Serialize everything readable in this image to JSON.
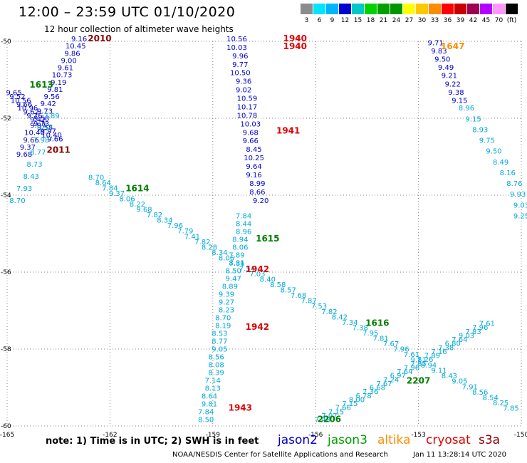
{
  "header": {
    "title": "12:00 – 23:59 UTC 01/10/2020",
    "subtitle": "12 hour collection of altimeter wave heights"
  },
  "color_scale": {
    "labels": [
      "3",
      "6",
      "9",
      "12",
      "15",
      "18",
      "21",
      "24",
      "27",
      "30",
      "33",
      "36",
      "39",
      "42",
      "45",
      "70",
      "(ft)"
    ],
    "colors": [
      "#8c8c8c",
      "#00e5ff",
      "#00b4ff",
      "#0000d2",
      "#00c8c8",
      "#00d200",
      "#00a000",
      "#009600",
      "#ffff00",
      "#ffc800",
      "#ff8c00",
      "#ff0000",
      "#c80000",
      "#a00050",
      "#b400ff",
      "#ff96ff",
      "#000000"
    ]
  },
  "map": {
    "lon_ticks": [
      "-165",
      "-162",
      "-159",
      "-156",
      "-153",
      "-150"
    ],
    "lat_ticks": [
      "-50",
      "-52",
      "-54",
      "-56",
      "-58",
      "-60"
    ],
    "lon_range": [
      -165,
      -150
    ],
    "lat_range": [
      -60,
      -50
    ],
    "grid": "dotted"
  },
  "tracks": [
    {
      "name": "t1",
      "sat": "jason2",
      "color": "#0000c8",
      "lon": [
        -162.9,
        -163.0,
        -163.1,
        -163.2,
        -163.3,
        -163.4,
        -163.5,
        -163.6,
        -163.7,
        -163.8,
        -163.9,
        -164.0,
        -164.1,
        -164.2,
        -164.3,
        -164.4,
        -164.5
      ],
      "values": [
        "9.16",
        "10.45",
        "9.86",
        "9.00",
        "9.61",
        "10.73",
        "9.19",
        "9.81",
        "9.56",
        "9.42",
        "9.73",
        "9.58",
        "9.97",
        "10.40",
        "9.66",
        "9.37",
        "9.68"
      ]
    },
    {
      "name": "t2",
      "sat": "jason2",
      "color": "#0000c8",
      "lon": [
        -164.8,
        -164.7,
        -164.6,
        -164.5,
        -164.4,
        -164.3,
        -164.2,
        -164.1,
        -164.0,
        -163.9,
        -163.8,
        -163.7,
        -163.6
      ],
      "values": [
        "9.65",
        "9.52",
        "10.56",
        "9.66",
        "10.96",
        "9.62",
        "9.76",
        "9.42",
        "9.73",
        "9.58",
        "9.97",
        "10.40",
        "9.66"
      ]
    },
    {
      "name": "t3",
      "sat": "jason3",
      "color": "#00a8d8",
      "lon": [
        -163.7,
        -163.9,
        -164.0,
        -164.1,
        -164.2,
        -164.3,
        -164.5,
        -164.7
      ],
      "values": [
        "7.89",
        "8.57",
        "7.98",
        "8.77",
        "8.73",
        "8.43",
        "7.93",
        "8.70"
      ]
    },
    {
      "name": "t4",
      "sat": "jason3",
      "color": "#00a8d8",
      "lon": [
        -162.4,
        -162.2,
        -162.0,
        -161.8,
        -161.5,
        -161.2,
        -161.0,
        -160.7,
        -160.4,
        -160.1,
        -159.8,
        -159.6,
        -159.3,
        -159.1,
        -158.8,
        -158.6,
        -158.3,
        -158.0,
        -157.7,
        -157.4,
        -157.1,
        -156.8,
        -156.5,
        -156.2,
        -155.9,
        -155.6,
        -155.3,
        -155.0,
        -154.7,
        -154.4,
        -154.1,
        -153.8,
        -153.5,
        -153.2,
        -153.0,
        -152.7,
        -152.4,
        -152.1,
        -151.8,
        -151.5,
        -151.2,
        -150.9,
        -150.6,
        -150.3
      ],
      "values": [
        "8.70",
        "8.64",
        "7.84",
        "9.37",
        "8.06",
        "8.22",
        "9.68",
        "7.82",
        "8.34",
        "7.96",
        "7.79",
        "7.41",
        "7.82",
        "8.28",
        "8.34",
        "8.06",
        "7.86",
        "7.54",
        "7.03",
        "8.40",
        "8.58",
        "8.57",
        "7.68",
        "7.87",
        "7.53",
        "7.82",
        "8.42",
        "7.34",
        "7.38",
        "7.95",
        "7.81",
        "7.67",
        "7.96",
        "7.61",
        "9.11",
        "8.94",
        "9.11",
        "8.43",
        "9.05",
        "7.91",
        "8.56",
        "8.54",
        "8.25",
        "7.85"
      ]
    },
    {
      "name": "t5",
      "sat": "jason2",
      "color": "#0000c8",
      "lon": [
        -158.3,
        -158.3,
        -158.2,
        -158.2,
        -158.2,
        -158.1,
        -158.1,
        -158.0,
        -158.0,
        -158.0,
        -157.9,
        -157.9,
        -157.9,
        -157.8,
        -157.8,
        -157.8,
        -157.8,
        -157.7,
        -157.7,
        -157.6
      ],
      "values": [
        "10.56",
        "10.03",
        "9.96",
        "9.77",
        "10.50",
        "9.36",
        "9.02",
        "10.59",
        "10.17",
        "10.78",
        "10.03",
        "9.68",
        "9.66",
        "8.45",
        "10.25",
        "9.64",
        "9.16",
        "8.99",
        "8.66",
        "9.20"
      ]
    },
    {
      "name": "t6",
      "sat": "jason3",
      "color": "#00a8d8",
      "lon": [
        -158.1,
        -158.1,
        -158.1,
        -158.2,
        -158.2,
        -158.3,
        -158.3,
        -158.4,
        -158.4,
        -158.5,
        -158.6,
        -158.6,
        -158.6,
        -158.7,
        -158.7,
        -158.8,
        -158.8,
        -158.8,
        -158.9,
        -158.9,
        -158.9,
        -159.0,
        -159.0,
        -159.1,
        -159.1,
        -159.2,
        -159.2
      ],
      "values": [
        "7.84",
        "8.44",
        "8.96",
        "8.94",
        "8.06",
        "7.89",
        "8.31",
        "8.50",
        "9.47",
        "8.89",
        "9.39",
        "9.27",
        "8.23",
        "8.70",
        "8.19",
        "8.53",
        "8.77",
        "9.05",
        "8.56",
        "8.08",
        "8.39",
        "7.14",
        "8.13",
        "8.64",
        "9.81",
        "7.84",
        "8.50"
      ]
    },
    {
      "name": "t7",
      "sat": "jason3",
      "color": "#00a8d8",
      "lon": [
        -151.6,
        -151.4,
        -151.2,
        -151.0,
        -150.8,
        -150.6,
        -150.4,
        -150.2,
        -150.1,
        -150.0,
        -150.0
      ],
      "values": [
        "8.96",
        "9.15",
        "8.93",
        "9.75",
        "9.50",
        "8.49",
        "8.16",
        "8.76",
        "9.93",
        "9.03",
        "9.25"
      ]
    },
    {
      "name": "t8",
      "sat": "jason2",
      "color": "#0000c8",
      "lon": [
        -152.5,
        -152.4,
        -152.3,
        -152.2,
        -152.1,
        -152.0,
        -151.9,
        -151.8
      ],
      "values": [
        "9.71",
        "9.83",
        "9.50",
        "9.49",
        "9.21",
        "9.22",
        "9.38",
        "9.15"
      ]
    },
    {
      "name": "t9",
      "sat": "jason3",
      "color": "#00a8d8",
      "lon": [
        -155.8,
        -155.6,
        -155.4,
        -155.2,
        -155.0,
        -154.8,
        -154.6,
        -154.4,
        -154.2,
        -154.0,
        -153.8,
        -153.6,
        -153.4,
        -153.2,
        -153.0,
        -152.8,
        -152.6,
        -152.4,
        -152.2,
        -152.0,
        -151.8,
        -151.6,
        -151.4,
        -151.2,
        -151.0
      ],
      "values": [
        "7.48",
        "7.07",
        "7.15",
        "7.66",
        "7.15",
        "8.00",
        "6.78",
        "7.36",
        "6.68",
        "7.67",
        "7.24",
        "6.97",
        "7.64",
        "7.96",
        "7.85",
        "8.26",
        "7.89",
        "7.16",
        "7.38",
        "6.80",
        "7.64",
        "9.03",
        "7.83",
        "7.96",
        "7.61"
      ]
    }
  ],
  "track_labels": [
    {
      "text": "2010",
      "color": "#8b0000"
    },
    {
      "text": "1613",
      "color": "#008000"
    },
    {
      "text": "2011",
      "color": "#8b0000"
    },
    {
      "text": "1614",
      "color": "#008000"
    },
    {
      "text": "1940",
      "color": "#e00000"
    },
    {
      "text": "1940",
      "color": "#e00000"
    },
    {
      "text": "1941",
      "color": "#e00000"
    },
    {
      "text": "1615",
      "color": "#008000"
    },
    {
      "text": "1942",
      "color": "#e00000"
    },
    {
      "text": "1942",
      "color": "#e00000"
    },
    {
      "text": "1943",
      "color": "#e00000"
    },
    {
      "text": "1647",
      "color": "#ff8c00"
    },
    {
      "text": "1616",
      "color": "#008000"
    },
    {
      "text": "2207",
      "color": "#008000"
    },
    {
      "text": "2206",
      "color": "#008000"
    }
  ],
  "footer": {
    "note": "note: 1) Time is in UTC; 2) SWH is in feet",
    "satellites": [
      {
        "name": "jason2",
        "color": "#0000c8"
      },
      {
        "name": "jason3",
        "color": "#00a000"
      },
      {
        "name": "altika",
        "color": "#ff8c00"
      },
      {
        "name": "cryosat",
        "color": "#e00000"
      },
      {
        "name": "s3a",
        "color": "#8b0000"
      }
    ],
    "credit": "NOAA/NESDIS Center for Satellite Applications and Research",
    "timestamp": "Jan 11 13:28:14 UTC 2020"
  }
}
